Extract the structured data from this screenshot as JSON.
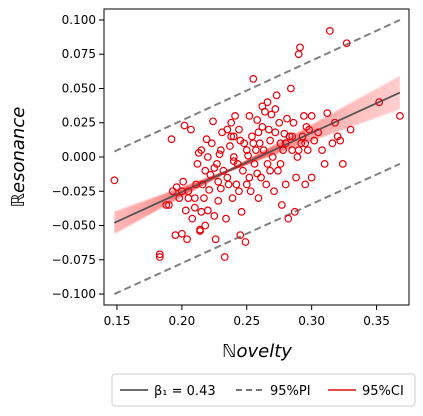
{
  "chart_data": {
    "type": "scatter",
    "xlabel": "ℕovelty",
    "ylabel": "ℝesonance",
    "xlim": [
      0.14,
      0.375
    ],
    "ylim": [
      -0.108,
      0.108
    ],
    "x_ticks": [
      0.15,
      0.2,
      0.25,
      0.3,
      0.35
    ],
    "x_tick_labels": [
      "0.15",
      "0.20",
      "0.25",
      "0.30",
      "0.35"
    ],
    "y_ticks": [
      0.1,
      0.075,
      0.05,
      0.025,
      0.0,
      -0.025,
      -0.05,
      -0.075,
      -0.1
    ],
    "y_tick_labels": [
      "0.100",
      "0.075",
      "0.050",
      "0.025",
      "0.000",
      "−0.025",
      "−0.050",
      "−0.075",
      "−0.100"
    ],
    "grid": false,
    "legend_position": "bottom",
    "legend": [
      {
        "label": "β₁ = 0.43",
        "style": "solid",
        "color": "#555555"
      },
      {
        "label": "95%PI",
        "style": "dashed",
        "color": "#777777"
      },
      {
        "label": "95%CI",
        "style": "solid",
        "color": "#e03030"
      }
    ],
    "colors": {
      "points": "#e8000b",
      "fit": "#555555",
      "pi": "#808080",
      "ci": "#ff3030"
    },
    "fit": {
      "slope": 0.43,
      "x_range": [
        0.148,
        0.368
      ],
      "y_range": [
        -0.048,
        0.047
      ]
    },
    "pi_upper": {
      "x_range": [
        0.148,
        0.368
      ],
      "y_range": [
        0.004,
        0.1
      ]
    },
    "pi_lower": {
      "x_range": [
        0.148,
        0.368
      ],
      "y_range": [
        -0.1,
        -0.005
      ]
    },
    "points": [
      [
        0.148,
        -0.017
      ],
      [
        0.183,
        -0.071
      ],
      [
        0.183,
        -0.073
      ],
      [
        0.188,
        -0.035
      ],
      [
        0.19,
        -0.035
      ],
      [
        0.192,
        0.013
      ],
      [
        0.193,
        -0.025
      ],
      [
        0.195,
        -0.057
      ],
      [
        0.196,
        -0.022
      ],
      [
        0.198,
        -0.03
      ],
      [
        0.2,
        -0.056
      ],
      [
        0.201,
        -0.018
      ],
      [
        0.202,
        0.023
      ],
      [
        0.203,
        -0.039
      ],
      [
        0.204,
        -0.06
      ],
      [
        0.205,
        -0.03
      ],
      [
        0.207,
        0.02
      ],
      [
        0.208,
        -0.045
      ],
      [
        0.21,
        -0.037
      ],
      [
        0.211,
        -0.02
      ],
      [
        0.212,
        -0.005
      ],
      [
        0.213,
        0.003
      ],
      [
        0.214,
        -0.053
      ],
      [
        0.214,
        -0.054
      ],
      [
        0.215,
        0.005
      ],
      [
        0.216,
        -0.02
      ],
      [
        0.217,
        -0.03
      ],
      [
        0.218,
        -0.01
      ],
      [
        0.219,
        0.013
      ],
      [
        0.22,
        -0.039
      ],
      [
        0.221,
        -0.024
      ],
      [
        0.222,
        -0.013
      ],
      [
        0.223,
        0.01
      ],
      [
        0.224,
        0.026
      ],
      [
        0.225,
        -0.043
      ],
      [
        0.226,
        -0.06
      ],
      [
        0.227,
        -0.005
      ],
      [
        0.228,
        -0.032
      ],
      [
        0.229,
        0.002
      ],
      [
        0.23,
        -0.023
      ],
      [
        0.231,
        0.018
      ],
      [
        0.232,
        -0.01
      ],
      [
        0.233,
        -0.073
      ],
      [
        0.234,
        -0.045
      ],
      [
        0.235,
        0.02
      ],
      [
        0.236,
        -0.02
      ],
      [
        0.237,
        0.008
      ],
      [
        0.238,
        0.015
      ],
      [
        0.239,
        -0.03
      ],
      [
        0.24,
        -0.003
      ],
      [
        0.241,
        0.03
      ],
      [
        0.242,
        -0.02
      ],
      [
        0.243,
        -0.005
      ],
      [
        0.244,
        0.02
      ],
      [
        0.245,
        -0.057
      ],
      [
        0.246,
        -0.04
      ],
      [
        0.247,
        -0.01
      ],
      [
        0.248,
        0.01
      ],
      [
        0.249,
        -0.062
      ],
      [
        0.25,
        -0.02
      ],
      [
        0.251,
        0.001
      ],
      [
        0.252,
        0.03
      ],
      [
        0.253,
        -0.025
      ],
      [
        0.254,
        0.015
      ],
      [
        0.255,
        0.057
      ],
      [
        0.256,
        -0.005
      ],
      [
        0.257,
        0.005
      ],
      [
        0.258,
        0.027
      ],
      [
        0.259,
        -0.03
      ],
      [
        0.26,
        0.01
      ],
      [
        0.261,
        -0.015
      ],
      [
        0.262,
        0.037
      ],
      [
        0.263,
        0.005
      ],
      [
        0.264,
        0.033
      ],
      [
        0.265,
        -0.02
      ],
      [
        0.266,
        -0.005
      ],
      [
        0.267,
        0.02
      ],
      [
        0.268,
        0.012
      ],
      [
        0.269,
        0.031
      ],
      [
        0.27,
        0.0
      ],
      [
        0.271,
        -0.025
      ],
      [
        0.272,
        0.018
      ],
      [
        0.273,
        0.045
      ],
      [
        0.274,
        -0.01
      ],
      [
        0.275,
        0.025
      ],
      [
        0.276,
        0.01
      ],
      [
        0.277,
        -0.035
      ],
      [
        0.278,
        0.005
      ],
      [
        0.279,
        0.017
      ],
      [
        0.28,
        0.01
      ],
      [
        0.281,
        0.028
      ],
      [
        0.282,
        -0.045
      ],
      [
        0.283,
        0.015
      ],
      [
        0.284,
        0.05
      ],
      [
        0.285,
        0.005
      ],
      [
        0.286,
        0.025
      ],
      [
        0.287,
        -0.04
      ],
      [
        0.288,
        -0.015
      ],
      [
        0.289,
        0.0
      ],
      [
        0.29,
        0.075
      ],
      [
        0.291,
        0.08
      ],
      [
        0.292,
        0.01
      ],
      [
        0.293,
        0.015
      ],
      [
        0.294,
        0.03
      ],
      [
        0.295,
        -0.02
      ],
      [
        0.296,
        0.022
      ],
      [
        0.297,
        0.005
      ],
      [
        0.298,
        0.02
      ],
      [
        0.3,
        -0.015
      ],
      [
        0.302,
        0.012
      ],
      [
        0.305,
        0.018
      ],
      [
        0.308,
        0.005
      ],
      [
        0.31,
        -0.005
      ],
      [
        0.312,
        0.032
      ],
      [
        0.314,
        0.092
      ],
      [
        0.316,
        0.01
      ],
      [
        0.318,
        0.025
      ],
      [
        0.32,
        0.015
      ],
      [
        0.322,
        0.012
      ],
      [
        0.324,
        -0.005
      ],
      [
        0.327,
        0.083
      ],
      [
        0.33,
        0.02
      ],
      [
        0.352,
        0.04
      ],
      [
        0.368,
        0.03
      ],
      [
        0.205,
        -0.025
      ],
      [
        0.215,
        -0.04
      ],
      [
        0.225,
        -0.008
      ],
      [
        0.23,
        0.005
      ],
      [
        0.24,
        0.0
      ],
      [
        0.245,
        0.012
      ],
      [
        0.25,
        0.005
      ],
      [
        0.255,
        0.01
      ],
      [
        0.258,
        -0.012
      ],
      [
        0.262,
        0.022
      ],
      [
        0.268,
        -0.01
      ],
      [
        0.272,
        0.035
      ],
      [
        0.276,
        -0.005
      ],
      [
        0.28,
        -0.02
      ],
      [
        0.285,
        0.015
      ],
      [
        0.29,
        0.005
      ],
      [
        0.295,
        0.01
      ],
      [
        0.3,
        0.03
      ],
      [
        0.24,
        0.015
      ],
      [
        0.235,
        -0.015
      ],
      [
        0.22,
        0.0
      ],
      [
        0.21,
        -0.03
      ],
      [
        0.2,
        -0.025
      ],
      [
        0.266,
        0.04
      ],
      [
        0.259,
        0.018
      ],
      [
        0.252,
        -0.015
      ],
      [
        0.244,
        -0.025
      ],
      [
        0.238,
        0.025
      ],
      [
        0.228,
        -0.018
      ],
      [
        0.218,
        -0.05
      ]
    ]
  }
}
